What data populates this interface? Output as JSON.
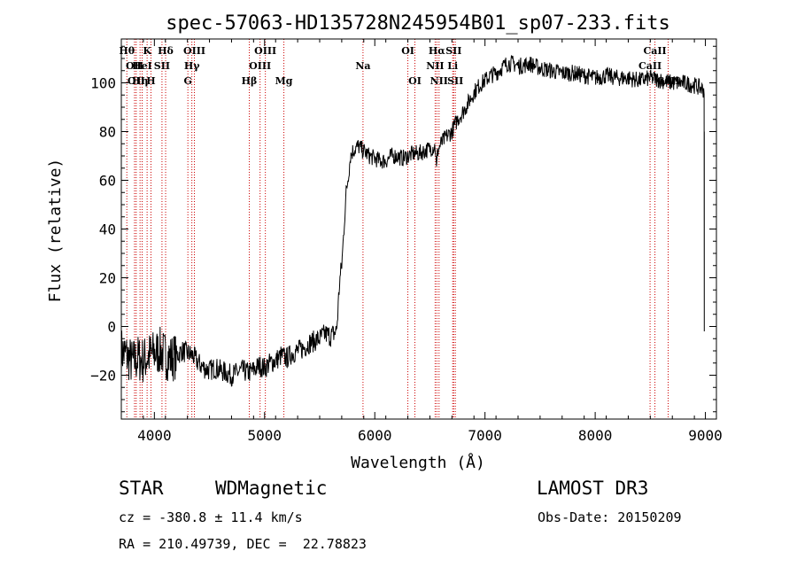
{
  "chart_data": {
    "type": "line",
    "title": "spec-57063-HD135728N245954B01_sp07-233.fits",
    "xlabel": "Wavelength (Å)",
    "ylabel": "Flux (relative)",
    "xlim": [
      3700,
      9100
    ],
    "ylim": [
      -38,
      118
    ],
    "x_ticks": [
      4000,
      5000,
      6000,
      7000,
      8000,
      9000
    ],
    "y_ticks": [
      -20,
      0,
      20,
      40,
      60,
      80,
      100
    ],
    "series": [
      {
        "name": "flux",
        "x": [
          3700,
          3750,
          3800,
          3850,
          3900,
          3950,
          4000,
          4050,
          4100,
          4150,
          4200,
          4250,
          4300,
          4350,
          4400,
          4450,
          4500,
          4550,
          4600,
          4650,
          4700,
          4750,
          4800,
          4850,
          4900,
          4950,
          5000,
          5050,
          5100,
          5150,
          5200,
          5250,
          5300,
          5350,
          5400,
          5450,
          5500,
          5550,
          5600,
          5650,
          5660,
          5680,
          5700,
          5720,
          5740,
          5760,
          5780,
          5800,
          5850,
          5900,
          5950,
          6000,
          6050,
          6100,
          6150,
          6200,
          6250,
          6300,
          6350,
          6400,
          6450,
          6500,
          6550,
          6560,
          6570,
          6600,
          6650,
          6700,
          6750,
          6800,
          6850,
          6900,
          6950,
          7000,
          7050,
          7100,
          7150,
          7200,
          7250,
          7300,
          7350,
          7400,
          7450,
          7500,
          7600,
          7700,
          7800,
          7900,
          8000,
          8100,
          8200,
          8300,
          8400,
          8500,
          8600,
          8700,
          8800,
          8900,
          8950,
          8990
        ],
        "y": [
          -10,
          -12,
          -15,
          -13,
          -14,
          -12,
          -11,
          -10,
          -12,
          -13,
          -12,
          -10,
          -11,
          -12,
          -15,
          -17,
          -18,
          -17,
          -18,
          -19,
          -20,
          -19,
          -18,
          -19,
          -18,
          -16,
          -17,
          -15,
          -14,
          -12,
          -13,
          -11,
          -10,
          -9,
          -7,
          -6,
          -5,
          -3,
          -4,
          -2,
          2,
          18,
          25,
          40,
          55,
          62,
          70,
          72,
          74,
          72,
          70,
          69,
          68,
          68,
          70,
          70,
          69,
          70,
          71,
          71,
          72,
          73,
          74,
          64,
          72,
          75,
          78,
          80,
          85,
          88,
          92,
          96,
          99,
          101,
          103,
          104,
          106,
          108,
          108,
          107,
          107,
          108,
          107,
          106,
          105,
          104,
          104,
          103,
          102,
          103,
          102,
          102,
          101,
          102,
          101,
          100,
          100,
          99,
          98,
          97
        ]
      }
    ],
    "line_markers": [
      {
        "x": 3750,
        "label": "Hθ",
        "row": 1
      },
      {
        "x": 3820,
        "label": "OII",
        "row": 2
      },
      {
        "x": 3835,
        "label": "OII",
        "row": 3
      },
      {
        "x": 3870,
        "label": "Hη",
        "row": 3
      },
      {
        "x": 3889,
        "label": "HeI",
        "row": 2
      },
      {
        "x": 3934,
        "label": "K",
        "row": 1
      },
      {
        "x": 3969,
        "label": "H",
        "row": 3
      },
      {
        "x": 4069,
        "label": "SII",
        "row": 2
      },
      {
        "x": 4102,
        "label": "Hδ",
        "row": 1
      },
      {
        "x": 4304,
        "label": "G",
        "row": 3
      },
      {
        "x": 4340,
        "label": "Hγ",
        "row": 2
      },
      {
        "x": 4363,
        "label": "OIII",
        "row": 1
      },
      {
        "x": 4861,
        "label": "Hβ",
        "row": 3
      },
      {
        "x": 4959,
        "label": "OIII",
        "row": 2
      },
      {
        "x": 5007,
        "label": "OIII",
        "row": 1
      },
      {
        "x": 5175,
        "label": "Mg",
        "row": 3
      },
      {
        "x": 5893,
        "label": "Na",
        "row": 2
      },
      {
        "x": 6300,
        "label": "OI",
        "row": 1
      },
      {
        "x": 6364,
        "label": "OI",
        "row": 3
      },
      {
        "x": 6548,
        "label": "NII",
        "row": 2
      },
      {
        "x": 6563,
        "label": "Hα",
        "row": 1
      },
      {
        "x": 6583,
        "label": "NII",
        "row": 3
      },
      {
        "x": 6707,
        "label": "Li",
        "row": 2
      },
      {
        "x": 6716,
        "label": "SII",
        "row": 1
      },
      {
        "x": 6731,
        "label": "SII",
        "row": 3
      },
      {
        "x": 8498,
        "label": "CaII",
        "row": 2
      },
      {
        "x": 8542,
        "label": "CaII",
        "row": 1
      },
      {
        "x": 8662,
        "label": "CaII",
        "row": 3
      }
    ]
  },
  "info": {
    "object_class": "STAR",
    "subclass": "WDMagnetic",
    "survey": "LAMOST DR3",
    "cz": "cz = -380.8 ± 11.4 km/s",
    "obs_date": "Obs-Date: 20150209",
    "coords": "RA = 210.49739, DEC =  22.78823"
  }
}
